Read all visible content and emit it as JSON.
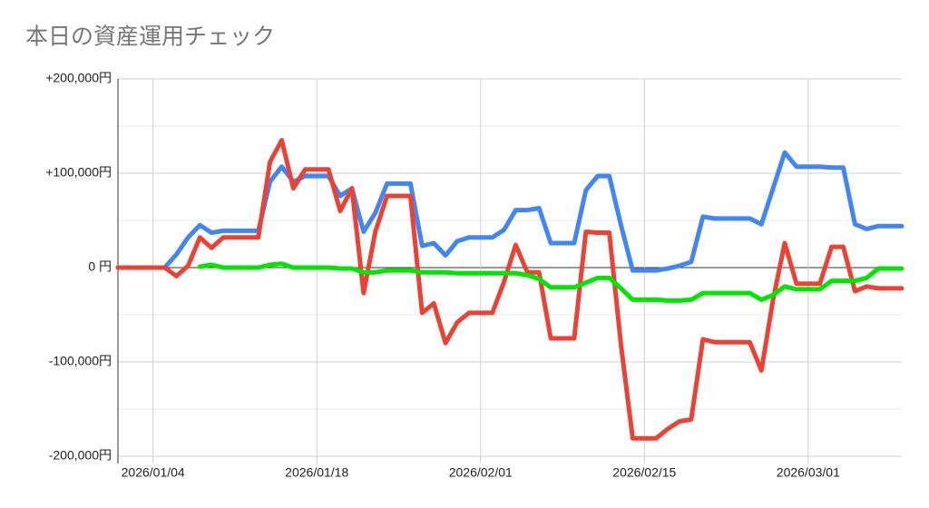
{
  "chart_data": {
    "type": "line",
    "title": "本日の資産運用チェック",
    "x": [
      "2026/01/01",
      "2026/01/02",
      "2026/01/03",
      "2026/01/04",
      "2026/01/05",
      "2026/01/06",
      "2026/01/07",
      "2026/01/08",
      "2026/01/09",
      "2026/01/10",
      "2026/01/11",
      "2026/01/12",
      "2026/01/13",
      "2026/01/14",
      "2026/01/15",
      "2026/01/16",
      "2026/01/17",
      "2026/01/18",
      "2026/01/19",
      "2026/01/20",
      "2026/01/21",
      "2026/01/22",
      "2026/01/23",
      "2026/01/24",
      "2026/01/25",
      "2026/01/26",
      "2026/01/27",
      "2026/01/28",
      "2026/01/29",
      "2026/01/30",
      "2026/01/31",
      "2026/02/01",
      "2026/02/02",
      "2026/02/03",
      "2026/02/04",
      "2026/02/05",
      "2026/02/06",
      "2026/02/07",
      "2026/02/08",
      "2026/02/09",
      "2026/02/10",
      "2026/02/11",
      "2026/02/12",
      "2026/02/13",
      "2026/02/14",
      "2026/02/15",
      "2026/02/16",
      "2026/02/17",
      "2026/02/18",
      "2026/02/19",
      "2026/02/20",
      "2026/02/21",
      "2026/02/22",
      "2026/02/23",
      "2026/02/24",
      "2026/02/25",
      "2026/02/26",
      "2026/02/27",
      "2026/02/28",
      "2026/03/01",
      "2026/03/02",
      "2026/03/03",
      "2026/03/04",
      "2026/03/05",
      "2026/03/06",
      "2026/03/07",
      "2026/03/08",
      "2026/03/09"
    ],
    "series": [
      {
        "color": "#4285f4",
        "values": [
          0,
          0,
          0,
          0,
          0,
          14000,
          32000,
          45000,
          37000,
          39000,
          39000,
          39000,
          39000,
          91000,
          107000,
          91000,
          97000,
          97000,
          97000,
          76000,
          84000,
          38000,
          58000,
          89000,
          89000,
          89000,
          23000,
          26000,
          13000,
          28000,
          32000,
          32000,
          32000,
          40000,
          61000,
          61000,
          63000,
          26000,
          26000,
          26000,
          82000,
          97000,
          97000,
          45000,
          -3000,
          -3000,
          -3000,
          -1000,
          2000,
          6000,
          54000,
          52000,
          52000,
          52000,
          52000,
          46000,
          84000,
          122000,
          107000,
          107000,
          107000,
          106000,
          106000,
          46000,
          41000,
          44000,
          44000,
          44000
        ]
      },
      {
        "color": "#ea4335",
        "values": [
          0,
          0,
          0,
          0,
          0,
          -9000,
          2000,
          32000,
          21000,
          32000,
          32000,
          32000,
          32000,
          112000,
          135000,
          84000,
          104000,
          104000,
          104000,
          60000,
          84000,
          -27000,
          38000,
          76000,
          76000,
          76000,
          -48000,
          -38000,
          -80000,
          -58000,
          -48000,
          -48000,
          -48000,
          -15000,
          24000,
          -5000,
          -5000,
          -75000,
          -75000,
          -75000,
          38000,
          37000,
          37000,
          -82000,
          -181000,
          -181000,
          -181000,
          -171000,
          -163000,
          -161000,
          -76000,
          -79000,
          -79000,
          -79000,
          -79000,
          -109000,
          -34000,
          26000,
          -17000,
          -17000,
          -17000,
          22000,
          22000,
          -25000,
          -20000,
          -22000,
          -22000,
          -22000
        ]
      },
      {
        "color": "#00e600",
        "values": [
          null,
          null,
          null,
          null,
          null,
          null,
          null,
          1000,
          3000,
          0,
          0,
          0,
          0,
          3000,
          4000,
          0,
          0,
          0,
          0,
          -1000,
          -1000,
          -5000,
          -5000,
          -3000,
          -3000,
          -3000,
          -5000,
          -5000,
          -5000,
          -6000,
          -6000,
          -6000,
          -6000,
          -6000,
          -6000,
          -8000,
          -12000,
          -21000,
          -21000,
          -21000,
          -16000,
          -11000,
          -11000,
          -22000,
          -34000,
          -34000,
          -34000,
          -35000,
          -35000,
          -34000,
          -27000,
          -27000,
          -27000,
          -27000,
          -27000,
          -34000,
          -29000,
          -20000,
          -23000,
          -23000,
          -23000,
          -14000,
          -14000,
          -14000,
          -11000,
          -1000,
          -1000,
          -1000
        ]
      }
    ],
    "xlim": [
      "2026/01/01",
      "2026/03/09"
    ],
    "xticks": [
      "2026/01/04",
      "2026/01/18",
      "2026/02/01",
      "2026/02/15",
      "2026/03/01"
    ],
    "ylim": [
      -200000,
      200000
    ],
    "yticks": [
      {
        "value": 200000,
        "label": "+200,000円"
      },
      {
        "value": 100000,
        "label": "+100,000円"
      },
      {
        "value": 0,
        "label": "0 円"
      },
      {
        "value": -100000,
        "label": "-100,000円"
      },
      {
        "value": -200000,
        "label": "-200,000円"
      }
    ],
    "yminor_grid": [
      150000,
      50000,
      -50000,
      -150000
    ],
    "grid": true
  }
}
